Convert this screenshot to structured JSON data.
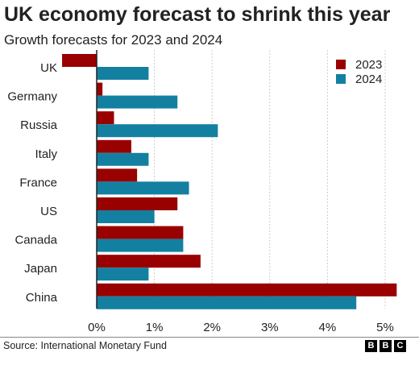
{
  "chart_data": {
    "type": "bar",
    "orientation": "horizontal",
    "title": "UK economy forecast to shrink this year",
    "subtitle": "Growth forecasts for 2023 and 2024",
    "categories": [
      "UK",
      "Germany",
      "Russia",
      "Italy",
      "France",
      "US",
      "Canada",
      "Japan",
      "China"
    ],
    "series": [
      {
        "name": "2023",
        "color": "#990000",
        "values": [
          -0.6,
          0.1,
          0.3,
          0.6,
          0.7,
          1.4,
          1.5,
          1.8,
          5.2
        ]
      },
      {
        "name": "2024",
        "color": "#1380a1",
        "values": [
          0.9,
          1.4,
          2.1,
          0.9,
          1.6,
          1.0,
          1.5,
          0.9,
          4.5
        ]
      }
    ],
    "xlim": [
      -0.6,
      5.3
    ],
    "x_ticks": [
      "0%",
      "1%",
      "2%",
      "3%",
      "4%",
      "5%"
    ],
    "x_tick_values": [
      0,
      1,
      2,
      3,
      4,
      5
    ],
    "grid": "vertical dashed gridlines",
    "legend_position": "top-right",
    "source": "Source: International Monetary Fund",
    "logo_text": [
      "B",
      "B",
      "C"
    ]
  }
}
